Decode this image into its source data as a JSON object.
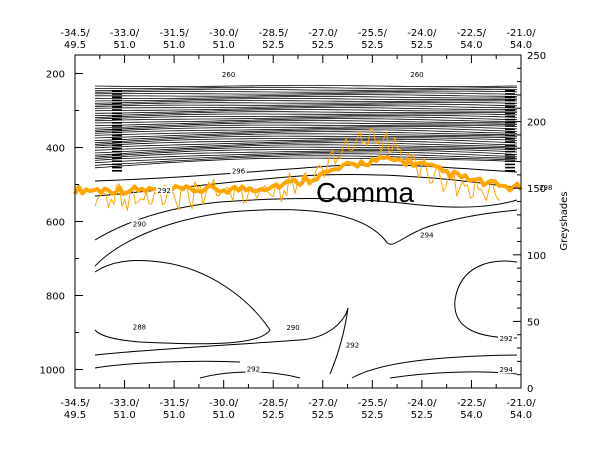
{
  "chart_data": {
    "type": "contour",
    "top_ticks": [
      {
        "lon": "-34.5/",
        "lat": "49.5",
        "xv": 0
      },
      {
        "lon": "-33.0/",
        "lat": "51.0",
        "xv": 1
      },
      {
        "lon": "-31.5/",
        "lat": "51.0",
        "xv": 2
      },
      {
        "lon": "-30.0/",
        "lat": "51.0",
        "xv": 3
      },
      {
        "lon": "-28.5/",
        "lat": "52.5",
        "xv": 4
      },
      {
        "lon": "-27.0/",
        "lat": "52.5",
        "xv": 5
      },
      {
        "lon": "-25.5/",
        "lat": "52.5",
        "xv": 6
      },
      {
        "lon": "-24.0/",
        "lat": "52.5",
        "xv": 7
      },
      {
        "lon": "-22.5/",
        "lat": "54.0",
        "xv": 8
      },
      {
        "lon": "-21.0/",
        "lat": "54.0",
        "xv": 9
      }
    ],
    "bottom_ticks": [
      {
        "lon": "-34.5/",
        "lat": "49.5",
        "xv": 0
      },
      {
        "lon": "-33.0/",
        "lat": "51.0",
        "xv": 1
      },
      {
        "lon": "-31.5/",
        "lat": "51.0",
        "xv": 2
      },
      {
        "lon": "-30.0/",
        "lat": "51.0",
        "xv": 3
      },
      {
        "lon": "-28.5/",
        "lat": "52.5",
        "xv": 4
      },
      {
        "lon": "-27.0/",
        "lat": "52.5",
        "xv": 5
      },
      {
        "lon": "-25.5/",
        "lat": "52.5",
        "xv": 6
      },
      {
        "lon": "-24.0/",
        "lat": "52.5",
        "xv": 7
      },
      {
        "lon": "-22.5/",
        "lat": "54.0",
        "xv": 8
      },
      {
        "lon": "-21.0/",
        "lat": "54.0",
        "xv": 9
      }
    ],
    "y_left": {
      "ticks": [
        200,
        400,
        600,
        800,
        1000
      ],
      "range": [
        150,
        1050
      ],
      "reversed": true
    },
    "y_right": {
      "label": "Greyshades",
      "ticks": [
        0,
        50,
        100,
        150,
        200,
        250
      ],
      "range": [
        0,
        250
      ]
    },
    "annotation": "Comma",
    "contour_labels": [
      {
        "text": "260",
        "xv": 3.1,
        "p": 204
      },
      {
        "text": "260",
        "xv": 6.9,
        "p": 204
      },
      {
        "text": "296",
        "xv": 3.3,
        "p": 465
      },
      {
        "text": "292",
        "xv": 1.8,
        "p": 518
      },
      {
        "text": "290",
        "xv": 1.3,
        "p": 608
      },
      {
        "text": "294",
        "xv": 7.1,
        "p": 638
      },
      {
        "text": "290",
        "xv": 4.4,
        "p": 888
      },
      {
        "text": "288",
        "xv": 1.3,
        "p": 886
      },
      {
        "text": "292",
        "xv": 5.6,
        "p": 935
      },
      {
        "text": "292",
        "xv": 3.6,
        "p": 1000
      },
      {
        "text": "292",
        "xv": 8.7,
        "p": 918
      },
      {
        "text": "294",
        "xv": 8.7,
        "p": 1002
      },
      {
        "text": "298",
        "xv": 9.5,
        "p": 510
      }
    ],
    "colors": {
      "tropopause": "#ffa500",
      "contour": "#000000"
    }
  }
}
